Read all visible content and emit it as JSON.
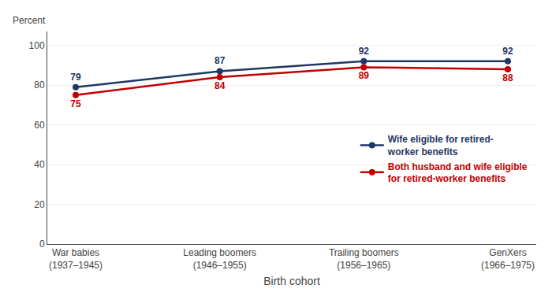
{
  "chart_data": {
    "type": "line",
    "xlabel": "Birth cohort",
    "ylabel": "Percent",
    "categories": [
      "War babies\n(1937–1945)",
      "Leading boomers\n(1946–1955)",
      "Trailing boomers\n(1956–1965)",
      "GenXers\n(1966–1975)"
    ],
    "series": [
      {
        "name": "Wife eligible for retired-\nworker benefits",
        "color": "#1f3864",
        "marker": "circle",
        "values": [
          79,
          87,
          92,
          92
        ]
      },
      {
        "name": "Both husband and wife eligible\nfor retired-worker benefits",
        "color": "#c00000",
        "marker": "circle",
        "values": [
          75,
          84,
          89,
          88
        ]
      }
    ],
    "ylim": [
      0,
      107
    ],
    "yticks": [
      0,
      20,
      40,
      60,
      80,
      100
    ],
    "grid": true,
    "legend": "right",
    "data_labels": true
  }
}
